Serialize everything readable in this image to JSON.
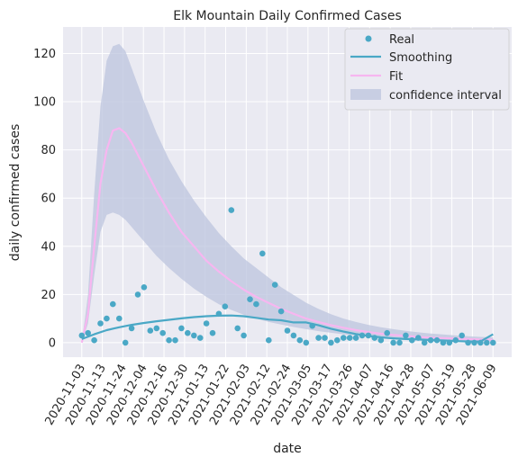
{
  "chart_data": {
    "type": "line",
    "title": "Elk Mountain Daily Confirmed Cases",
    "xlabel": "date",
    "ylabel": "daily confirmed cases",
    "x_tick_labels": [
      "2020-11-03",
      "2020-11-13",
      "2020-11-24",
      "2020-12-04",
      "2020-12-16",
      "2020-12-30",
      "2021-01-13",
      "2021-01-22",
      "2021-02-03",
      "2021-02-12",
      "2021-02-24",
      "2021-03-05",
      "2021-03-17",
      "2021-03-26",
      "2021-04-07",
      "2021-04-16",
      "2021-04-28",
      "2021-05-07",
      "2021-05-19",
      "2021-05-28",
      "2021-06-09"
    ],
    "y_ticks": [
      0,
      20,
      40,
      60,
      80,
      100,
      120
    ],
    "ylim": [
      -6,
      131
    ],
    "grid": true,
    "legend_placement": "top-right",
    "legend": [
      "Real",
      "Smoothing",
      "Fit",
      "confidence interval"
    ],
    "colors": {
      "plot_bg": "#eaeaf2",
      "grid": "#ffffff",
      "real": "#4aa8c6",
      "smoothing": "#4aa8c6",
      "fit": "#f7b6f0",
      "band": "#bcc4dd"
    },
    "series": [
      {
        "name": "Real",
        "kind": "scatter",
        "x": [
          0,
          1,
          2,
          3,
          4,
          5,
          6,
          7,
          8,
          9,
          10,
          11,
          12,
          13,
          14,
          15,
          16,
          17,
          18,
          19,
          20,
          21,
          22,
          23,
          24,
          25,
          26,
          27,
          28,
          29,
          30,
          31,
          32,
          33,
          34,
          35,
          36,
          37,
          38,
          39,
          40,
          41,
          42,
          43,
          44,
          45,
          46,
          47,
          48,
          49,
          50,
          51,
          52,
          53,
          54,
          55,
          56,
          57,
          58,
          59,
          60,
          61,
          62,
          63,
          64,
          65,
          66
        ],
        "y": [
          3,
          4,
          1,
          8,
          10,
          16,
          10,
          0,
          6,
          20,
          23,
          5,
          6,
          4,
          1,
          1,
          6,
          4,
          3,
          2,
          8,
          4,
          12,
          15,
          55,
          6,
          3,
          18,
          16,
          37,
          1,
          24,
          13,
          5,
          3,
          1,
          0,
          7,
          2,
          2,
          0,
          1,
          2,
          2,
          2,
          3,
          3,
          2,
          1,
          4,
          0,
          0,
          3,
          1,
          2,
          0,
          1,
          1,
          0,
          0,
          1,
          3,
          0,
          0,
          0,
          0,
          0
        ]
      },
      {
        "name": "Smoothing",
        "kind": "line",
        "x": [
          0,
          2,
          4,
          6,
          8,
          10,
          12,
          14,
          16,
          18,
          20,
          22,
          24,
          26,
          28,
          30,
          32,
          34,
          36,
          38,
          40,
          42,
          44,
          46,
          48,
          50,
          52,
          54,
          56,
          58,
          60,
          62,
          64,
          65,
          66
        ],
        "y": [
          1.5,
          3.5,
          5.2,
          6.4,
          7.4,
          8.2,
          8.9,
          9.5,
          10.1,
          10.6,
          11,
          11.2,
          11.3,
          11,
          10.3,
          9.6,
          9.3,
          8.4,
          8.4,
          7.2,
          5.8,
          4.6,
          3.6,
          2.8,
          2.2,
          1.8,
          1.5,
          1.3,
          1.1,
          0.9,
          0.7,
          0.5,
          0.5,
          2,
          3.5
        ]
      },
      {
        "name": "Fit",
        "kind": "line",
        "x": [
          0,
          1,
          2,
          3,
          4,
          5,
          6,
          7,
          8,
          9,
          10,
          12,
          14,
          16,
          18,
          20,
          22,
          24,
          26,
          28,
          30,
          32,
          34,
          36,
          38,
          40,
          42,
          44,
          46,
          48,
          50,
          52,
          54,
          56,
          58,
          60,
          62,
          64,
          66
        ],
        "y": [
          0,
          12,
          40,
          66,
          80,
          88,
          89,
          87,
          83,
          78,
          73,
          63,
          54,
          46,
          40,
          34,
          29.5,
          25.5,
          22,
          19,
          16.5,
          14,
          12,
          10,
          8.6,
          7.3,
          6.2,
          5.2,
          4.4,
          3.7,
          3.2,
          2.8,
          2.4,
          2.1,
          1.9,
          1.7,
          1.5,
          1.3,
          1.2
        ]
      },
      {
        "name": "confidence interval",
        "kind": "band",
        "x": [
          0,
          1,
          2,
          3,
          4,
          5,
          6,
          7,
          8,
          9,
          10,
          12,
          14,
          16,
          18,
          20,
          22,
          24,
          26,
          28,
          30,
          32,
          34,
          36,
          38,
          40,
          42,
          44,
          46,
          48,
          50,
          52,
          54,
          56,
          58,
          60,
          62,
          64,
          66
        ],
        "upper": [
          0,
          20,
          62,
          98,
          117,
          123,
          124,
          121,
          114,
          107,
          100,
          87,
          76,
          67,
          59,
          52,
          45.5,
          40,
          35,
          31,
          27,
          23,
          19.8,
          16.6,
          14,
          11.8,
          10,
          8.6,
          7.4,
          6.4,
          5.6,
          4.9,
          4.3,
          3.8,
          3.4,
          3,
          2.7,
          2.4,
          2.2
        ],
        "lower": [
          0,
          8,
          28,
          46,
          53,
          54,
          53,
          51,
          48,
          45,
          42,
          36,
          31,
          26.5,
          22.5,
          19,
          16,
          13.6,
          11.6,
          10,
          8.6,
          7.5,
          6.5,
          5.6,
          4.8,
          4.1,
          3.5,
          3,
          2.6,
          2.2,
          1.9,
          1.6,
          1.4,
          1.2,
          1,
          0.9,
          0.8,
          0.7,
          0.6
        ]
      }
    ]
  }
}
